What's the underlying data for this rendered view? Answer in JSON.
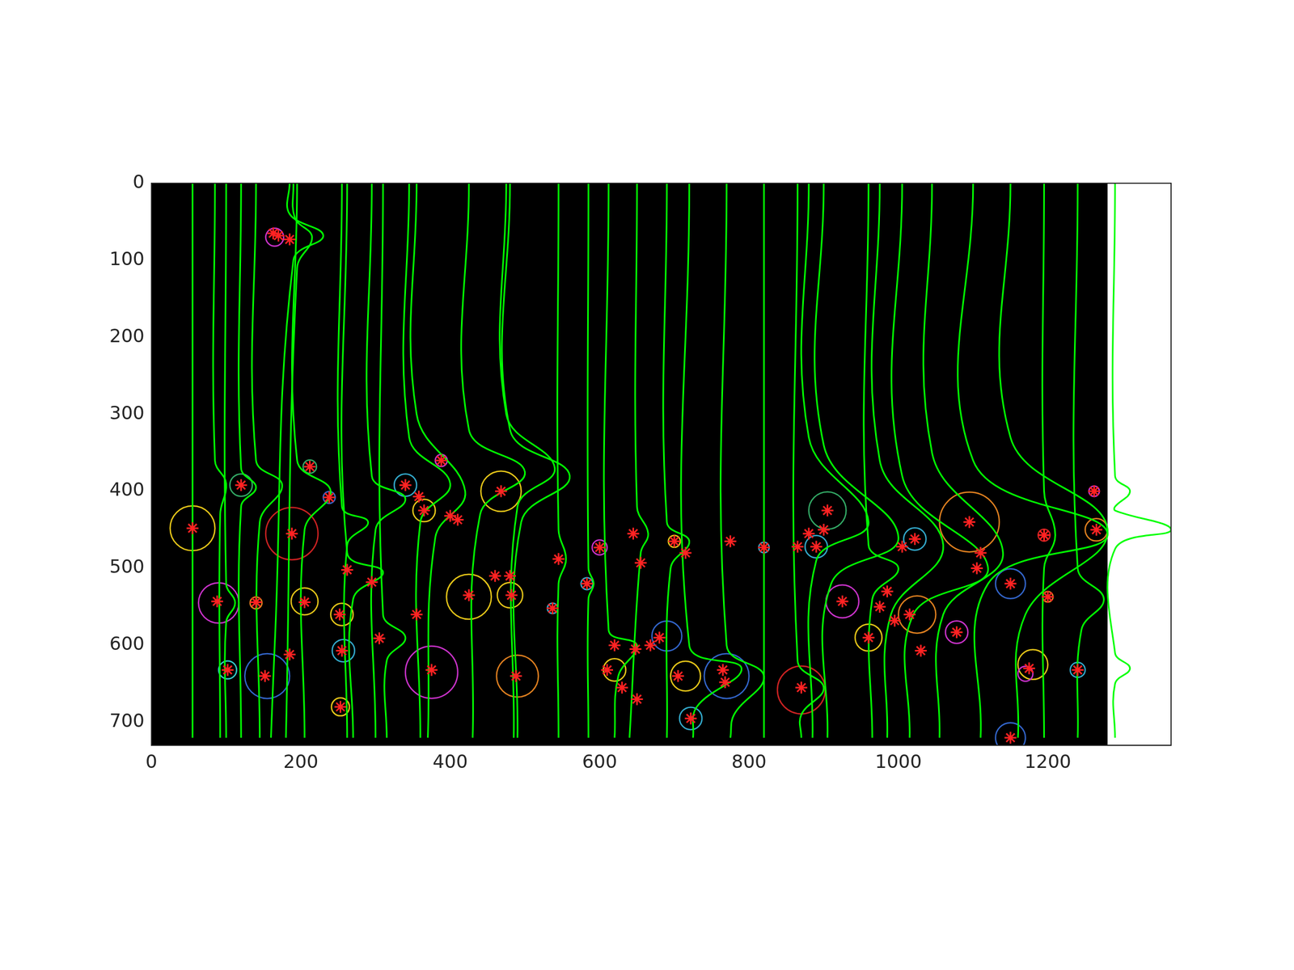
{
  "chart_data": {
    "type": "scatter",
    "xlim": [
      0,
      1365
    ],
    "ylim": [
      0,
      730
    ],
    "xticks": [
      0,
      200,
      400,
      600,
      800,
      1000,
      1200
    ],
    "yticks": [
      0,
      100,
      200,
      300,
      400,
      500,
      600,
      700
    ],
    "grid": false,
    "image": {
      "x": [
        0,
        1280
      ],
      "y": [
        0,
        730
      ],
      "color": "#000000"
    },
    "circles": {
      "x": [
        55,
        90,
        102,
        120,
        140,
        155,
        165,
        188,
        205,
        212,
        238,
        255,
        257,
        253,
        340,
        365,
        375,
        388,
        425,
        468,
        480,
        490,
        537,
        583,
        600,
        620,
        690,
        700,
        715,
        722,
        770,
        820,
        870,
        890,
        905,
        925,
        960,
        1022,
        1025,
        1078,
        1095,
        1150,
        1150,
        1180,
        1170,
        1195,
        1200,
        1240,
        1262,
        1265
      ],
      "y": [
        448,
        545,
        632,
        392,
        545,
        640,
        70,
        455,
        543,
        368,
        408,
        560,
        607,
        680,
        392,
        425,
        635,
        360,
        537,
        400,
        535,
        640,
        552,
        520,
        473,
        632,
        588,
        465,
        640,
        695,
        640,
        473,
        658,
        472,
        425,
        543,
        590,
        462,
        560,
        583,
        440,
        520,
        720,
        625,
        637,
        457,
        537,
        632,
        400,
        450
      ],
      "r": [
        30,
        27,
        12,
        15,
        8,
        30,
        12,
        35,
        18,
        9,
        8,
        15,
        15,
        12,
        15,
        15,
        35,
        8,
        30,
        27,
        17,
        28,
        7,
        8,
        10,
        15,
        20,
        8,
        20,
        15,
        30,
        7,
        32,
        15,
        25,
        22,
        18,
        15,
        25,
        15,
        40,
        20,
        20,
        20,
        10,
        8,
        7,
        10,
        7,
        15
      ],
      "colors": [
        "#e6c619",
        "#cc33cc",
        "#33cccc",
        "#33aa66",
        "#e08020",
        "#3366cc",
        "#cc33cc",
        "#cc2222",
        "#e6c619",
        "#33aa66",
        "#3366cc",
        "#e6c619",
        "#33aacc",
        "#e6c619",
        "#33aacc",
        "#e6c619",
        "#cc33cc",
        "#cc33cc",
        "#e6c619",
        "#e6c619",
        "#e6c619",
        "#e08020",
        "#33aacc",
        "#33aacc",
        "#cc33cc",
        "#e6c619",
        "#3366cc",
        "#e6c619",
        "#e6c619",
        "#33aacc",
        "#3366cc",
        "#33aacc",
        "#cc2222",
        "#33aacc",
        "#33aa66",
        "#cc33cc",
        "#e6c619",
        "#33aacc",
        "#e08020",
        "#cc33cc",
        "#e08020",
        "#3366cc",
        "#3366cc",
        "#e6c619",
        "#cc33cc",
        "#cc2222",
        "#e08020",
        "#33aacc",
        "#cc33cc",
        "#e08020"
      ]
    },
    "curves": {
      "color": "#00ff00",
      "lines": [
        [
          [
            55,
            0
          ],
          [
            55,
            720
          ]
        ],
        [
          [
            85,
            0
          ],
          [
            85,
            360
          ],
          [
            100,
            390
          ],
          [
            92,
            430
          ],
          [
            92,
            720
          ]
        ],
        [
          [
            100,
            0
          ],
          [
            100,
            520
          ],
          [
            112,
            545
          ],
          [
            100,
            570
          ],
          [
            100,
            720
          ]
        ],
        [
          [
            120,
            0
          ],
          [
            120,
            370
          ],
          [
            140,
            395
          ],
          [
            120,
            420
          ],
          [
            120,
            720
          ]
        ],
        [
          [
            140,
            0
          ],
          [
            140,
            360
          ],
          [
            175,
            392
          ],
          [
            145,
            440
          ],
          [
            145,
            720
          ]
        ],
        [
          [
            185,
            0
          ],
          [
            185,
            40
          ],
          [
            230,
            68
          ],
          [
            190,
            100
          ],
          [
            165,
            600
          ],
          [
            160,
            720
          ]
        ],
        [
          [
            190,
            0
          ],
          [
            192,
            45
          ],
          [
            215,
            70
          ],
          [
            195,
            110
          ],
          [
            180,
            720
          ]
        ],
        [
          [
            195,
            0
          ],
          [
            195,
            360
          ],
          [
            240,
            400
          ],
          [
            205,
            450
          ],
          [
            205,
            720
          ]
        ],
        [
          [
            255,
            0
          ],
          [
            255,
            420
          ],
          [
            290,
            440
          ],
          [
            262,
            470
          ],
          [
            262,
            720
          ]
        ],
        [
          [
            262,
            0
          ],
          [
            262,
            480
          ],
          [
            310,
            505
          ],
          [
            270,
            540
          ],
          [
            270,
            720
          ]
        ],
        [
          [
            295,
            0
          ],
          [
            295,
            380
          ],
          [
            340,
            410
          ],
          [
            300,
            450
          ],
          [
            300,
            720
          ]
        ],
        [
          [
            310,
            0
          ],
          [
            310,
            560
          ],
          [
            340,
            590
          ],
          [
            315,
            620
          ],
          [
            315,
            720
          ]
        ],
        [
          [
            345,
            0
          ],
          [
            345,
            330
          ],
          [
            400,
            390
          ],
          [
            360,
            440
          ],
          [
            360,
            720
          ]
        ],
        [
          [
            355,
            0
          ],
          [
            355,
            300
          ],
          [
            420,
            400
          ],
          [
            380,
            460
          ],
          [
            370,
            720
          ]
        ],
        [
          [
            425,
            0
          ],
          [
            425,
            320
          ],
          [
            500,
            375
          ],
          [
            440,
            430
          ],
          [
            430,
            720
          ]
        ],
        [
          [
            475,
            0
          ],
          [
            475,
            300
          ],
          [
            540,
            370
          ],
          [
            490,
            420
          ],
          [
            485,
            720
          ]
        ],
        [
          [
            480,
            0
          ],
          [
            480,
            320
          ],
          [
            560,
            380
          ],
          [
            495,
            440
          ],
          [
            490,
            720
          ]
        ],
        [
          [
            545,
            0
          ],
          [
            545,
            450
          ],
          [
            555,
            488
          ],
          [
            545,
            520
          ],
          [
            545,
            720
          ]
        ],
        [
          [
            585,
            0
          ],
          [
            585,
            500
          ],
          [
            592,
            520
          ],
          [
            585,
            540
          ],
          [
            585,
            720
          ]
        ],
        [
          [
            612,
            0
          ],
          [
            612,
            580
          ],
          [
            650,
            600
          ],
          [
            625,
            640
          ],
          [
            620,
            720
          ]
        ],
        [
          [
            650,
            0
          ],
          [
            650,
            420
          ],
          [
            665,
            455
          ],
          [
            655,
            480
          ],
          [
            640,
            720
          ]
        ],
        [
          [
            690,
            0
          ],
          [
            690,
            440
          ],
          [
            720,
            465
          ],
          [
            695,
            500
          ],
          [
            690,
            720
          ]
        ],
        [
          [
            720,
            0
          ],
          [
            720,
            600
          ],
          [
            790,
            630
          ],
          [
            730,
            680
          ],
          [
            725,
            720
          ]
        ],
        [
          [
            770,
            0
          ],
          [
            770,
            600
          ],
          [
            820,
            640
          ],
          [
            780,
            690
          ],
          [
            775,
            720
          ]
        ],
        [
          [
            820,
            0
          ],
          [
            820,
            720
          ]
        ],
        [
          [
            865,
            0
          ],
          [
            865,
            620
          ],
          [
            900,
            655
          ],
          [
            870,
            690
          ],
          [
            870,
            720
          ]
        ],
        [
          [
            880,
            0
          ],
          [
            880,
            330
          ],
          [
            960,
            440
          ],
          [
            890,
            490
          ],
          [
            885,
            720
          ]
        ],
        [
          [
            900,
            0
          ],
          [
            900,
            340
          ],
          [
            1000,
            460
          ],
          [
            910,
            520
          ],
          [
            905,
            720
          ]
        ],
        [
          [
            960,
            0
          ],
          [
            960,
            470
          ],
          [
            1000,
            500
          ],
          [
            965,
            540
          ],
          [
            965,
            720
          ]
        ],
        [
          [
            975,
            0
          ],
          [
            975,
            360
          ],
          [
            1060,
            470
          ],
          [
            990,
            560
          ],
          [
            985,
            720
          ]
        ],
        [
          [
            1005,
            0
          ],
          [
            1005,
            380
          ],
          [
            1120,
            500
          ],
          [
            1020,
            560
          ],
          [
            1015,
            720
          ]
        ],
        [
          [
            1045,
            0
          ],
          [
            1045,
            350
          ],
          [
            1140,
            480
          ],
          [
            1060,
            560
          ],
          [
            1055,
            720
          ]
        ],
        [
          [
            1100,
            0
          ],
          [
            1100,
            360
          ],
          [
            1280,
            455
          ],
          [
            1120,
            520
          ],
          [
            1110,
            720
          ]
        ],
        [
          [
            1150,
            0
          ],
          [
            1150,
            330
          ],
          [
            1280,
            450
          ],
          [
            1170,
            560
          ],
          [
            1160,
            720
          ]
        ],
        [
          [
            1195,
            0
          ],
          [
            1195,
            400
          ],
          [
            1210,
            457
          ],
          [
            1195,
            500
          ],
          [
            1195,
            720
          ]
        ],
        [
          [
            1240,
            0
          ],
          [
            1240,
            500
          ],
          [
            1275,
            540
          ],
          [
            1245,
            580
          ],
          [
            1240,
            720
          ]
        ],
        [
          [
            1290,
            0
          ],
          [
            1290,
            380
          ],
          [
            1310,
            400
          ],
          [
            1290,
            420
          ],
          [
            1290,
            425
          ],
          [
            1365,
            450
          ],
          [
            1290,
            475
          ],
          [
            1290,
            610
          ],
          [
            1310,
            630
          ],
          [
            1290,
            650
          ],
          [
            1290,
            720
          ]
        ]
      ]
    },
    "markers": {
      "marker": "asterisk",
      "color": "#ff2222",
      "x": [
        55,
        88,
        102,
        120,
        140,
        152,
        163,
        170,
        185,
        185,
        188,
        205,
        212,
        238,
        252,
        255,
        253,
        262,
        295,
        305,
        340,
        355,
        358,
        365,
        375,
        388,
        400,
        410,
        425,
        460,
        468,
        480,
        482,
        488,
        545,
        537,
        583,
        600,
        610,
        620,
        630,
        645,
        648,
        650,
        655,
        668,
        680,
        700,
        705,
        715,
        722,
        765,
        768,
        775,
        820,
        865,
        870,
        880,
        890,
        900,
        905,
        925,
        960,
        975,
        985,
        995,
        1005,
        1015,
        1022,
        1030,
        1078,
        1095,
        1105,
        1110,
        1150,
        1150,
        1175,
        1195,
        1200,
        1240,
        1262,
        1265
      ],
      "y": [
        448,
        543,
        632,
        392,
        544,
        640,
        65,
        68,
        73,
        612,
        455,
        544,
        368,
        408,
        560,
        607,
        680,
        502,
        518,
        591,
        392,
        560,
        407,
        425,
        632,
        360,
        432,
        437,
        535,
        510,
        400,
        510,
        535,
        640,
        488,
        552,
        520,
        473,
        632,
        600,
        655,
        455,
        605,
        670,
        493,
        600,
        590,
        465,
        640,
        480,
        695,
        632,
        648,
        465,
        473,
        472,
        655,
        455,
        472,
        450,
        425,
        543,
        590,
        550,
        530,
        568,
        472,
        560,
        462,
        607,
        583,
        440,
        500,
        480,
        520,
        720,
        630,
        457,
        537,
        632,
        400,
        450
      ]
    }
  }
}
